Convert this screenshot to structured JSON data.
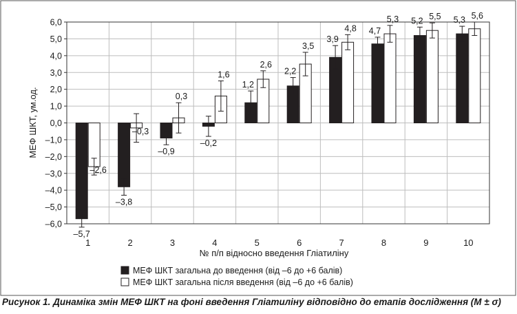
{
  "chart_data": {
    "type": "bar",
    "categories": [
      "1",
      "2",
      "3",
      "4",
      "5",
      "6",
      "7",
      "8",
      "9",
      "10"
    ],
    "series": [
      {
        "name": "МЕФ ШКТ загальна до введення (від –6 до +6 балів)",
        "color": "#231f20",
        "values": [
          -5.7,
          -3.8,
          -0.9,
          -0.2,
          1.2,
          2.2,
          3.9,
          4.7,
          5.2,
          5.3
        ],
        "value_labels": [
          "–5,7",
          "–3,8",
          "–0,9",
          "–0,2",
          "1,2",
          "2,2",
          "3,9",
          "4,7",
          "5,2",
          "5,3"
        ],
        "error": [
          0.5,
          0.5,
          0.4,
          0.6,
          0.7,
          0.5,
          0.7,
          0.4,
          0.5,
          0.45
        ]
      },
      {
        "name": "МЕФ ШКТ загальна після введення (від –6 до +6 балів)",
        "color": "#ffffff",
        "values": [
          -2.6,
          -0.3,
          0.3,
          1.6,
          2.6,
          3.5,
          4.8,
          5.3,
          5.5,
          5.6
        ],
        "value_labels": [
          "–2,6",
          "–0,3",
          "0,3",
          "1,6",
          "2,6",
          "3,5",
          "4,8",
          "5,3",
          "5,5",
          "5,6"
        ],
        "error": [
          0.5,
          0.85,
          0.9,
          0.9,
          0.5,
          0.7,
          0.45,
          0.5,
          0.45,
          0.4
        ]
      }
    ],
    "title": "",
    "xlabel": "№ п/п відносно введення Гліатиліну",
    "ylabel": "МЕФ ШКТ, ум.од.",
    "ylim": [
      -6,
      6
    ],
    "yticks": [
      -6,
      -5,
      -4,
      -3,
      -2,
      -1,
      0,
      1,
      2,
      3,
      4,
      5,
      6
    ],
    "ytick_labels": [
      "–6,0",
      "–5,0",
      "–4,0",
      "–3,0",
      "–2,0",
      "–1,0",
      "0,0",
      "1,0",
      "2,0",
      "3,0",
      "4,0",
      "5,0",
      "6,0"
    ],
    "grid": true,
    "legend_position": "bottom-center"
  },
  "caption": "Рисунок 1. Динаміка змін МЕФ ШКТ на фоні введення Гліатиліну відповідно до етапів дослідження (M ± σ)"
}
